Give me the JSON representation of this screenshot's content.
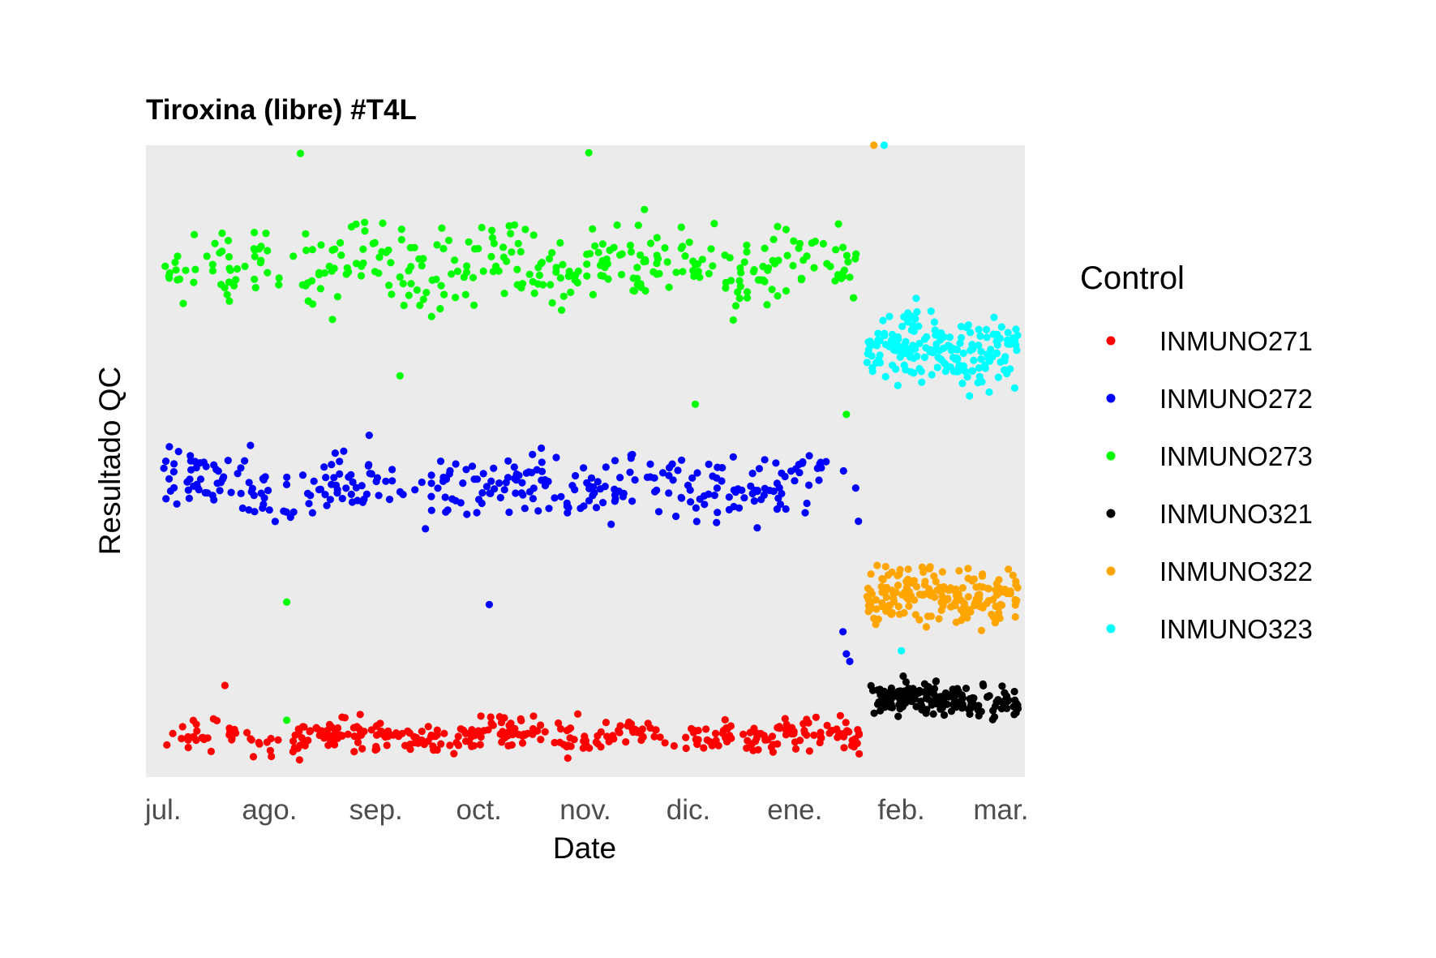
{
  "chart_data": {
    "type": "scatter",
    "title": "Tiroxina (libre) #T4L",
    "xlabel": "Date",
    "ylabel": "Resultado QC",
    "x_ticks": [
      "jul.",
      "ago.",
      "sep.",
      "oct.",
      "nov.",
      "dic.",
      "ene.",
      "feb.",
      "mar."
    ],
    "x_tick_dates": [
      "2023-07-01",
      "2023-08-01",
      "2023-09-01",
      "2023-10-01",
      "2023-11-01",
      "2023-12-01",
      "2024-01-01",
      "2024-02-01",
      "2024-03-01"
    ],
    "xlim": [
      "2023-06-26",
      "2024-03-08"
    ],
    "ylim": [
      0,
      100
    ],
    "y_ticks_shown": false,
    "grid": false,
    "panel_background": "#ebebeb",
    "legend": {
      "title": "Control",
      "position": "right"
    },
    "series": [
      {
        "name": "INMUNO271",
        "color": "#ff0000",
        "x_start": "2023-07-01",
        "x_end": "2024-01-20",
        "y_center": 6.5,
        "y_spread": 2.4,
        "n": 360,
        "seed": 11,
        "outliers": [
          {
            "x": "2023-07-19",
            "y": 14.5
          }
        ]
      },
      {
        "name": "INMUNO272",
        "color": "#0000ff",
        "x_start": "2023-07-01",
        "x_end": "2024-01-20",
        "y_center": 46,
        "y_spread": 4.5,
        "n": 330,
        "seed": 23,
        "outliers": [
          {
            "x": "2023-10-04",
            "y": 27.3
          },
          {
            "x": "2024-01-16",
            "y": 19.5
          },
          {
            "x": "2024-01-17",
            "y": 18.3
          },
          {
            "x": "2024-01-15",
            "y": 23
          }
        ]
      },
      {
        "name": "INMUNO273",
        "color": "#00ff00",
        "x_start": "2023-07-01",
        "x_end": "2024-01-20",
        "y_center": 81,
        "y_spread": 5.5,
        "n": 330,
        "seed": 37,
        "outliers": [
          {
            "x": "2023-08-06",
            "y": 27.7
          },
          {
            "x": "2023-08-06",
            "y": 9
          },
          {
            "x": "2023-09-08",
            "y": 63.5
          },
          {
            "x": "2023-12-03",
            "y": 59
          },
          {
            "x": "2024-01-16",
            "y": 57.4
          },
          {
            "x": "2023-08-10",
            "y": 98.7
          },
          {
            "x": "2023-11-02",
            "y": 98.8
          }
        ]
      },
      {
        "name": "INMUNO321",
        "color": "#000000",
        "x_start": "2024-01-22",
        "x_end": "2024-03-06",
        "y_center": 12.3,
        "y_spread": 2.2,
        "n": 170,
        "seed": 53,
        "outliers": []
      },
      {
        "name": "INMUNO322",
        "color": "#ffa500",
        "x_start": "2024-01-22",
        "x_end": "2024-03-06",
        "y_center": 28.5,
        "y_spread": 4.2,
        "n": 190,
        "seed": 71,
        "outliers": [
          {
            "x": "2024-01-24",
            "y": 100
          }
        ]
      },
      {
        "name": "INMUNO323",
        "color": "#00ffff",
        "x_start": "2024-01-22",
        "x_end": "2024-03-06",
        "y_center": 67.5,
        "y_spread": 4.8,
        "n": 190,
        "seed": 89,
        "outliers": [
          {
            "x": "2024-01-27",
            "y": 100
          },
          {
            "x": "2024-02-01",
            "y": 20
          }
        ]
      }
    ]
  }
}
